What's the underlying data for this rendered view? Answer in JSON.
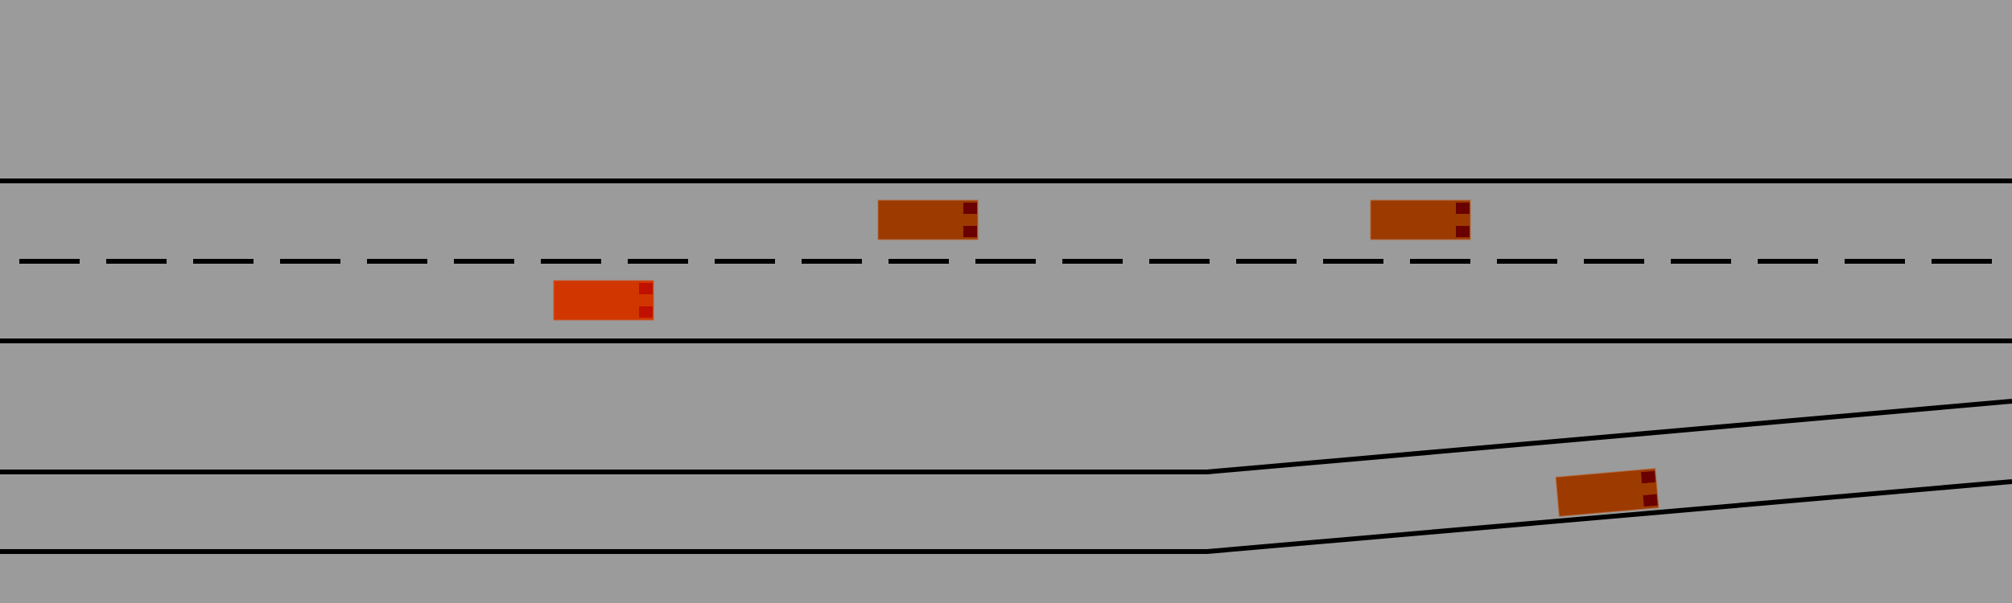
{
  "scene": {
    "background_color": "#9b9b9b",
    "line_color": "#000000"
  },
  "vehicles": [
    {
      "id": "ego",
      "role": "controlled",
      "color": "#d13600",
      "light_color": "#c01000"
    },
    {
      "id": "other-1",
      "role": "traffic",
      "color": "#9c3a00",
      "light_color": "#6a0000"
    },
    {
      "id": "other-2",
      "role": "traffic",
      "color": "#9c3a00",
      "light_color": "#6a0000"
    },
    {
      "id": "other-3",
      "role": "traffic",
      "color": "#9c3a00",
      "light_color": "#6a0000"
    }
  ]
}
